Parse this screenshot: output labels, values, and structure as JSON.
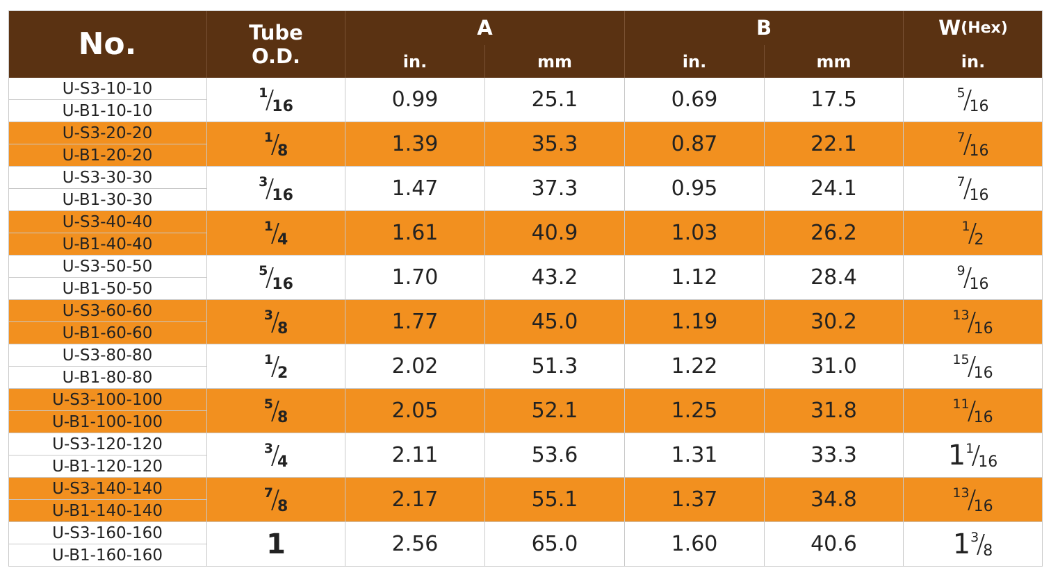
{
  "header": {
    "no": "No.",
    "tube": [
      "Tube",
      "O.D."
    ],
    "a": {
      "label": "A",
      "units": [
        "in.",
        "mm"
      ]
    },
    "b": {
      "label": "B",
      "units": [
        "in.",
        "mm"
      ]
    },
    "w": {
      "label": "W",
      "note": "(Hex)",
      "unit": "in."
    }
  },
  "rows": [
    {
      "parts": [
        "U-S3-10-10",
        "U-B1-10-10"
      ],
      "tube_od": {
        "num": "1",
        "den": "16"
      },
      "a_in": "0.99",
      "a_mm": "25.1",
      "b_in": "0.69",
      "b_mm": "17.5",
      "w_hex": {
        "num": "5",
        "den": "16"
      }
    },
    {
      "parts": [
        "U-S3-20-20",
        "U-B1-20-20"
      ],
      "tube_od": {
        "num": "1",
        "den": "8"
      },
      "a_in": "1.39",
      "a_mm": "35.3",
      "b_in": "0.87",
      "b_mm": "22.1",
      "w_hex": {
        "num": "7",
        "den": "16"
      }
    },
    {
      "parts": [
        "U-S3-30-30",
        "U-B1-30-30"
      ],
      "tube_od": {
        "num": "3",
        "den": "16"
      },
      "a_in": "1.47",
      "a_mm": "37.3",
      "b_in": "0.95",
      "b_mm": "24.1",
      "w_hex": {
        "num": "7",
        "den": "16"
      }
    },
    {
      "parts": [
        "U-S3-40-40",
        "U-B1-40-40"
      ],
      "tube_od": {
        "num": "1",
        "den": "4"
      },
      "a_in": "1.61",
      "a_mm": "40.9",
      "b_in": "1.03",
      "b_mm": "26.2",
      "w_hex": {
        "num": "1",
        "den": "2"
      }
    },
    {
      "parts": [
        "U-S3-50-50",
        "U-B1-50-50"
      ],
      "tube_od": {
        "num": "5",
        "den": "16"
      },
      "a_in": "1.70",
      "a_mm": "43.2",
      "b_in": "1.12",
      "b_mm": "28.4",
      "w_hex": {
        "num": "9",
        "den": "16"
      }
    },
    {
      "parts": [
        "U-S3-60-60",
        "U-B1-60-60"
      ],
      "tube_od": {
        "num": "3",
        "den": "8"
      },
      "a_in": "1.77",
      "a_mm": "45.0",
      "b_in": "1.19",
      "b_mm": "30.2",
      "w_hex": {
        "num": "13",
        "den": "16"
      }
    },
    {
      "parts": [
        "U-S3-80-80",
        "U-B1-80-80"
      ],
      "tube_od": {
        "num": "1",
        "den": "2"
      },
      "a_in": "2.02",
      "a_mm": "51.3",
      "b_in": "1.22",
      "b_mm": "31.0",
      "w_hex": {
        "num": "15",
        "den": "16"
      }
    },
    {
      "parts": [
        "U-S3-100-100",
        "U-B1-100-100"
      ],
      "tube_od": {
        "num": "5",
        "den": "8"
      },
      "a_in": "2.05",
      "a_mm": "52.1",
      "b_in": "1.25",
      "b_mm": "31.8",
      "w_hex": {
        "num": "11",
        "den": "16"
      }
    },
    {
      "parts": [
        "U-S3-120-120",
        "U-B1-120-120"
      ],
      "tube_od": {
        "num": "3",
        "den": "4"
      },
      "a_in": "2.11",
      "a_mm": "53.6",
      "b_in": "1.31",
      "b_mm": "33.3",
      "w_hex": {
        "whole": "1",
        "num": "1",
        "den": "16"
      }
    },
    {
      "parts": [
        "U-S3-140-140",
        "U-B1-140-140"
      ],
      "tube_od": {
        "num": "7",
        "den": "8"
      },
      "a_in": "2.17",
      "a_mm": "55.1",
      "b_in": "1.37",
      "b_mm": "34.8",
      "w_hex": {
        "num": "13",
        "den": "16"
      }
    },
    {
      "parts": [
        "U-S3-160-160",
        "U-B1-160-160"
      ],
      "tube_od": {
        "whole": "1"
      },
      "a_in": "2.56",
      "a_mm": "65.0",
      "b_in": "1.60",
      "b_mm": "40.6",
      "w_hex": {
        "whole": "1",
        "num": "3",
        "den": "8"
      }
    }
  ]
}
